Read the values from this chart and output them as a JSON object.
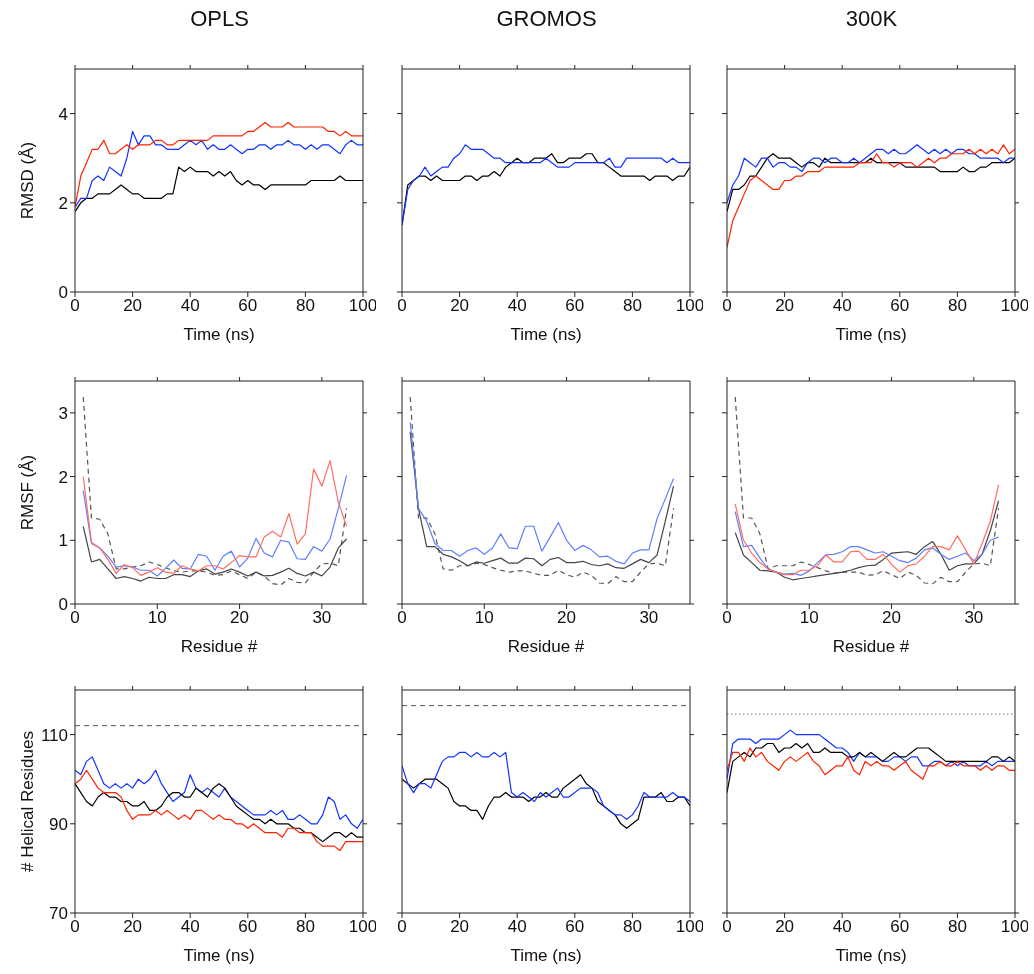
{
  "chart_data": [
    {
      "type": "line",
      "title": "OPLS",
      "xlabel": "Time (ns)",
      "ylabel": "RMSD (Å)",
      "xlim": [
        0,
        100
      ],
      "xticks": [
        0,
        20,
        40,
        60,
        80,
        100
      ],
      "ylim": [
        0,
        5
      ],
      "yticks": [
        0,
        2,
        4
      ],
      "x": [
        0,
        2,
        4,
        6,
        8,
        10,
        12,
        14,
        16,
        18,
        20,
        22,
        24,
        26,
        28,
        30,
        32,
        34,
        36,
        38,
        40,
        42,
        44,
        46,
        48,
        50,
        52,
        54,
        56,
        58,
        60,
        62,
        64,
        66,
        68,
        70,
        72,
        74,
        76,
        78,
        80,
        82,
        84,
        86,
        88,
        90,
        92,
        94,
        96,
        98,
        100
      ],
      "series": [
        {
          "color": "#000000",
          "values": [
            1.8,
            2.0,
            2.1,
            2.1,
            2.2,
            2.2,
            2.2,
            2.3,
            2.4,
            2.3,
            2.2,
            2.2,
            2.1,
            2.1,
            2.1,
            2.1,
            2.2,
            2.2,
            2.8,
            2.7,
            2.8,
            2.7,
            2.7,
            2.7,
            2.6,
            2.7,
            2.6,
            2.7,
            2.5,
            2.4,
            2.5,
            2.4,
            2.4,
            2.3,
            2.4,
            2.4,
            2.4,
            2.4,
            2.4,
            2.4,
            2.4,
            2.5,
            2.5,
            2.5,
            2.5,
            2.5,
            2.6,
            2.5,
            2.5,
            2.5,
            2.5
          ]
        },
        {
          "color": "#1133ff",
          "values": [
            1.9,
            2.1,
            2.1,
            2.5,
            2.6,
            2.5,
            2.8,
            2.7,
            2.6,
            3.0,
            3.6,
            3.3,
            3.5,
            3.5,
            3.3,
            3.3,
            3.2,
            3.2,
            3.2,
            3.3,
            3.4,
            3.3,
            3.4,
            3.2,
            3.3,
            3.2,
            3.2,
            3.3,
            3.2,
            3.1,
            3.2,
            3.2,
            3.3,
            3.3,
            3.2,
            3.3,
            3.3,
            3.4,
            3.3,
            3.3,
            3.2,
            3.3,
            3.2,
            3.3,
            3.3,
            3.2,
            3.1,
            3.3,
            3.4,
            3.3,
            3.3
          ]
        },
        {
          "color": "#ff2200",
          "values": [
            1.9,
            2.6,
            2.9,
            3.2,
            3.2,
            3.4,
            3.1,
            3.1,
            3.2,
            3.3,
            3.2,
            3.3,
            3.3,
            3.3,
            3.4,
            3.4,
            3.3,
            3.3,
            3.4,
            3.4,
            3.4,
            3.4,
            3.4,
            3.4,
            3.5,
            3.5,
            3.5,
            3.5,
            3.5,
            3.5,
            3.6,
            3.6,
            3.7,
            3.8,
            3.7,
            3.7,
            3.7,
            3.8,
            3.7,
            3.7,
            3.7,
            3.7,
            3.7,
            3.7,
            3.6,
            3.6,
            3.5,
            3.6,
            3.5,
            3.5,
            3.5
          ]
        }
      ]
    },
    {
      "type": "line",
      "title": "GROMOS",
      "xlabel": "Time (ns)",
      "xlim": [
        0,
        100
      ],
      "xticks": [
        0,
        20,
        40,
        60,
        80,
        100
      ],
      "ylim": [
        0,
        5
      ],
      "yticks": [
        0,
        2,
        4
      ],
      "tick_labels": "x",
      "x": [
        0,
        2,
        4,
        6,
        8,
        10,
        12,
        14,
        16,
        18,
        20,
        22,
        24,
        26,
        28,
        30,
        32,
        34,
        36,
        38,
        40,
        42,
        44,
        46,
        48,
        50,
        52,
        54,
        56,
        58,
        60,
        62,
        64,
        66,
        68,
        70,
        72,
        74,
        76,
        78,
        80,
        82,
        84,
        86,
        88,
        90,
        92,
        94,
        96,
        98,
        100
      ],
      "series": [
        {
          "color": "#000000",
          "values": [
            1.5,
            2.4,
            2.5,
            2.6,
            2.6,
            2.5,
            2.6,
            2.5,
            2.5,
            2.5,
            2.5,
            2.6,
            2.6,
            2.5,
            2.6,
            2.6,
            2.7,
            2.6,
            2.8,
            2.9,
            3.0,
            2.9,
            2.9,
            3.0,
            3.0,
            3.0,
            3.1,
            2.9,
            2.9,
            3.0,
            3.0,
            3.0,
            3.1,
            3.1,
            2.9,
            2.9,
            2.8,
            2.7,
            2.6,
            2.6,
            2.6,
            2.6,
            2.6,
            2.5,
            2.6,
            2.6,
            2.6,
            2.5,
            2.6,
            2.6,
            2.8
          ]
        },
        {
          "color": "#1133ff",
          "values": [
            1.5,
            2.3,
            2.5,
            2.6,
            2.8,
            2.6,
            2.7,
            2.8,
            2.8,
            3.0,
            3.1,
            3.3,
            3.2,
            3.2,
            3.2,
            3.1,
            3.0,
            3.0,
            2.9,
            2.9,
            2.9,
            2.9,
            2.9,
            2.9,
            2.9,
            3.0,
            2.9,
            2.8,
            2.8,
            2.8,
            2.9,
            2.9,
            2.9,
            2.9,
            2.9,
            2.9,
            3.0,
            2.8,
            2.8,
            3.0,
            3.0,
            3.0,
            3.0,
            3.0,
            3.0,
            3.0,
            2.9,
            3.0,
            2.9,
            2.9,
            2.9
          ]
        }
      ]
    },
    {
      "type": "line",
      "title": "300K",
      "xlabel": "Time (ns)",
      "xlim": [
        0,
        100
      ],
      "xticks": [
        0,
        20,
        40,
        60,
        80,
        100
      ],
      "ylim": [
        0,
        5
      ],
      "yticks": [
        0,
        2,
        4
      ],
      "tick_labels": "x",
      "x": [
        0,
        2,
        4,
        6,
        8,
        10,
        12,
        14,
        16,
        18,
        20,
        22,
        24,
        26,
        28,
        30,
        32,
        34,
        36,
        38,
        40,
        42,
        44,
        46,
        48,
        50,
        52,
        54,
        56,
        58,
        60,
        62,
        64,
        66,
        68,
        70,
        72,
        74,
        76,
        78,
        80,
        82,
        84,
        86,
        88,
        90,
        92,
        94,
        96,
        98,
        100
      ],
      "series": [
        {
          "color": "#000000",
          "values": [
            1.8,
            2.3,
            2.3,
            2.4,
            2.6,
            2.6,
            2.8,
            3.0,
            3.1,
            3.0,
            3.0,
            3.0,
            2.9,
            2.8,
            2.9,
            2.9,
            2.8,
            3.0,
            2.9,
            2.9,
            2.9,
            2.9,
            2.9,
            2.9,
            2.9,
            3.0,
            2.9,
            2.9,
            2.9,
            2.9,
            2.9,
            2.8,
            2.8,
            2.8,
            2.8,
            2.8,
            2.8,
            2.7,
            2.7,
            2.7,
            2.7,
            2.8,
            2.7,
            2.7,
            2.8,
            2.8,
            2.9,
            2.9,
            2.9,
            2.9,
            3.0
          ]
        },
        {
          "color": "#1133ff",
          "values": [
            2.0,
            2.4,
            2.6,
            3.0,
            2.9,
            2.8,
            3.0,
            3.0,
            2.8,
            2.9,
            2.9,
            2.8,
            2.8,
            2.7,
            2.9,
            3.0,
            3.0,
            2.9,
            3.0,
            3.0,
            2.9,
            2.9,
            3.0,
            2.9,
            3.0,
            3.1,
            3.2,
            3.2,
            3.1,
            3.2,
            3.1,
            3.1,
            3.2,
            3.3,
            3.2,
            3.1,
            3.2,
            3.1,
            3.2,
            3.1,
            3.2,
            3.2,
            3.1,
            3.1,
            3.0,
            3.0,
            3.0,
            3.0,
            2.9,
            3.0,
            3.0
          ]
        },
        {
          "color": "#ff2200",
          "values": [
            1.0,
            1.6,
            1.9,
            2.2,
            2.5,
            2.6,
            2.5,
            2.4,
            2.3,
            2.3,
            2.5,
            2.5,
            2.6,
            2.6,
            2.7,
            2.7,
            2.7,
            2.8,
            2.8,
            2.8,
            2.8,
            2.8,
            2.8,
            2.9,
            2.9,
            2.9,
            3.1,
            2.9,
            2.9,
            2.8,
            2.9,
            2.9,
            2.9,
            2.8,
            2.9,
            3.0,
            2.9,
            3.0,
            3.0,
            3.1,
            3.1,
            3.1,
            3.2,
            3.1,
            3.2,
            3.1,
            3.2,
            3.1,
            3.3,
            3.1,
            3.2
          ]
        }
      ]
    },
    {
      "type": "line",
      "xlabel": "Residue #",
      "ylabel": "RMSF (Å)",
      "xlim": [
        0,
        35
      ],
      "xticks": [
        0,
        10,
        20,
        30
      ],
      "ylim": [
        0,
        3.5
      ],
      "yticks": [
        0,
        1,
        2,
        3
      ],
      "x": [
        1,
        2,
        3,
        4,
        5,
        6,
        7,
        8,
        9,
        10,
        11,
        12,
        13,
        14,
        15,
        16,
        17,
        18,
        19,
        20,
        21,
        22,
        23,
        24,
        25,
        26,
        27,
        28,
        29,
        30,
        31,
        32,
        33
      ],
      "series": [
        {
          "color": "#555555",
          "line_style": "dashed",
          "values": [
            3.25,
            1.35,
            1.33,
            1.1,
            0.55,
            0.55,
            0.58,
            0.6,
            0.66,
            0.62,
            0.57,
            0.52,
            0.5,
            0.52,
            0.52,
            0.5,
            0.45,
            0.46,
            0.52,
            0.46,
            0.4,
            0.5,
            0.44,
            0.32,
            0.3,
            0.4,
            0.34,
            0.33,
            0.5,
            0.63,
            0.64,
            0.6,
            1.5
          ]
        },
        {
          "color": "#444444",
          "values": [
            1.22,
            0.66,
            0.7,
            0.55,
            0.4,
            0.43,
            0.4,
            0.36,
            0.42,
            0.4,
            0.4,
            0.46,
            0.46,
            0.43,
            0.52,
            0.55,
            0.47,
            0.5,
            0.55,
            0.5,
            0.44,
            0.5,
            0.44,
            0.45,
            0.5,
            0.56,
            0.48,
            0.44,
            0.5,
            0.44,
            0.58,
            0.88,
            1.02
          ]
        },
        {
          "color": "#5f7fff",
          "values": [
            1.78,
            0.95,
            0.88,
            0.75,
            0.58,
            0.6,
            0.58,
            0.53,
            0.53,
            0.44,
            0.56,
            0.69,
            0.56,
            0.55,
            0.78,
            0.75,
            0.53,
            0.75,
            0.83,
            0.58,
            0.72,
            1.03,
            0.8,
            0.74,
            1.0,
            0.97,
            0.71,
            0.7,
            0.9,
            0.83,
            1.02,
            1.5,
            2.02
          ]
        },
        {
          "color": "#ff6f61",
          "values": [
            2.0,
            0.97,
            0.88,
            0.7,
            0.48,
            0.62,
            0.57,
            0.45,
            0.5,
            0.57,
            0.5,
            0.48,
            0.6,
            0.55,
            0.52,
            0.6,
            0.6,
            0.55,
            0.65,
            0.76,
            0.74,
            0.74,
            1.05,
            1.14,
            1.05,
            1.42,
            0.94,
            1.1,
            2.12,
            1.85,
            2.25,
            1.6,
            1.22
          ]
        }
      ]
    },
    {
      "type": "line",
      "xlabel": "Residue #",
      "xlim": [
        0,
        35
      ],
      "xticks": [
        0,
        10,
        20,
        30
      ],
      "ylim": [
        0,
        3.5
      ],
      "yticks": [
        0,
        1,
        2,
        3
      ],
      "tick_labels": "x",
      "x": [
        1,
        2,
        3,
        4,
        5,
        6,
        7,
        8,
        9,
        10,
        11,
        12,
        13,
        14,
        15,
        16,
        17,
        18,
        19,
        20,
        21,
        22,
        23,
        24,
        25,
        26,
        27,
        28,
        29,
        30,
        31,
        32,
        33
      ],
      "series": [
        {
          "color": "#555555",
          "line_style": "dashed",
          "values": [
            3.25,
            1.35,
            1.35,
            1.1,
            0.55,
            0.53,
            0.6,
            0.6,
            0.64,
            0.62,
            0.57,
            0.53,
            0.5,
            0.52,
            0.52,
            0.48,
            0.45,
            0.45,
            0.53,
            0.46,
            0.42,
            0.5,
            0.45,
            0.33,
            0.32,
            0.43,
            0.35,
            0.35,
            0.5,
            0.63,
            0.64,
            0.6,
            1.5
          ]
        },
        {
          "color": "#444444",
          "values": [
            2.7,
            1.5,
            0.9,
            0.9,
            0.78,
            0.74,
            0.68,
            0.6,
            0.66,
            0.64,
            0.68,
            0.72,
            0.64,
            0.64,
            0.72,
            0.71,
            0.6,
            0.7,
            0.73,
            0.65,
            0.65,
            0.67,
            0.62,
            0.6,
            0.63,
            0.57,
            0.56,
            0.63,
            0.7,
            0.65,
            0.77,
            1.3,
            1.85
          ]
        },
        {
          "color": "#5f7fff",
          "values": [
            2.85,
            1.5,
            1.3,
            0.95,
            0.84,
            0.84,
            0.75,
            0.84,
            0.88,
            0.78,
            0.88,
            1.1,
            0.88,
            0.87,
            1.22,
            1.22,
            0.83,
            1.05,
            1.28,
            1.0,
            0.84,
            0.92,
            0.85,
            0.74,
            0.75,
            0.67,
            0.63,
            0.8,
            0.85,
            0.85,
            1.34,
            1.65,
            1.97
          ]
        }
      ]
    },
    {
      "type": "line",
      "xlabel": "Residue #",
      "xlim": [
        0,
        35
      ],
      "xticks": [
        0,
        10,
        20,
        30
      ],
      "ylim": [
        0,
        3.5
      ],
      "yticks": [
        0,
        1,
        2,
        3
      ],
      "tick_labels": "x",
      "x": [
        1,
        2,
        3,
        4,
        5,
        6,
        7,
        8,
        9,
        10,
        11,
        12,
        13,
        14,
        15,
        16,
        17,
        18,
        19,
        20,
        21,
        22,
        23,
        24,
        25,
        26,
        27,
        28,
        29,
        30,
        31,
        32,
        33
      ],
      "series": [
        {
          "color": "#555555",
          "line_style": "dashed",
          "values": [
            3.25,
            1.35,
            1.35,
            1.1,
            0.55,
            0.6,
            0.6,
            0.6,
            0.66,
            0.62,
            0.57,
            0.52,
            0.48,
            0.5,
            0.5,
            0.5,
            0.45,
            0.46,
            0.52,
            0.46,
            0.4,
            0.5,
            0.45,
            0.33,
            0.32,
            0.42,
            0.35,
            0.35,
            0.5,
            0.63,
            0.64,
            0.6,
            1.5
          ]
        },
        {
          "color": "#444444",
          "values": [
            1.12,
            0.77,
            0.65,
            0.53,
            0.52,
            0.5,
            0.42,
            0.38,
            0.4,
            0.42,
            0.44,
            0.46,
            0.48,
            0.5,
            0.53,
            0.57,
            0.6,
            0.61,
            0.7,
            0.8,
            0.81,
            0.82,
            0.78,
            0.9,
            0.98,
            0.78,
            0.53,
            0.6,
            0.63,
            0.63,
            0.78,
            1.15,
            1.62
          ]
        },
        {
          "color": "#5f7fff",
          "values": [
            1.45,
            0.9,
            0.92,
            0.72,
            0.55,
            0.5,
            0.47,
            0.48,
            0.45,
            0.52,
            0.65,
            0.77,
            0.78,
            0.82,
            0.9,
            0.9,
            0.85,
            0.8,
            0.82,
            0.75,
            0.68,
            0.65,
            0.72,
            0.85,
            0.88,
            0.78,
            0.7,
            0.75,
            0.8,
            0.68,
            0.78,
            1.0,
            1.05
          ]
        },
        {
          "color": "#ff6f61",
          "values": [
            1.57,
            1.0,
            0.8,
            0.65,
            0.55,
            0.5,
            0.46,
            0.46,
            0.53,
            0.53,
            0.6,
            0.77,
            0.66,
            0.66,
            0.82,
            0.83,
            0.7,
            0.7,
            0.78,
            0.62,
            0.5,
            0.6,
            0.63,
            0.75,
            0.9,
            0.9,
            0.85,
            1.07,
            0.85,
            0.63,
            0.95,
            1.3,
            1.87
          ]
        }
      ]
    },
    {
      "type": "line",
      "xlabel": "Time (ns)",
      "ylabel": "# Helical Residues",
      "xlim": [
        0,
        100
      ],
      "xticks": [
        0,
        20,
        40,
        60,
        80,
        100
      ],
      "ylim": [
        70,
        120
      ],
      "yticks": [
        70,
        90,
        110
      ],
      "ref_lines": [
        {
          "axis": "y",
          "value": 112,
          "color": "#555555",
          "line_style": "dashed"
        }
      ],
      "x": [
        0,
        2,
        4,
        6,
        8,
        10,
        12,
        14,
        16,
        18,
        20,
        22,
        24,
        26,
        28,
        30,
        32,
        34,
        36,
        38,
        40,
        42,
        44,
        46,
        48,
        50,
        52,
        54,
        56,
        58,
        60,
        62,
        64,
        66,
        68,
        70,
        72,
        74,
        76,
        78,
        80,
        82,
        84,
        86,
        88,
        90,
        92,
        94,
        96,
        98,
        100
      ],
      "series": [
        {
          "color": "#1133ff",
          "values": [
            102,
            101,
            104,
            105,
            102,
            99,
            98,
            99,
            98,
            99,
            98,
            100,
            99,
            100,
            102,
            99,
            97,
            95,
            96,
            97,
            101,
            98,
            97,
            98,
            97,
            96,
            98,
            96,
            95,
            94,
            93,
            92,
            92,
            92,
            93,
            92,
            93,
            91,
            91,
            92,
            91,
            90,
            90,
            92,
            96,
            95,
            91,
            92,
            90,
            89,
            91
          ]
        },
        {
          "color": "#000000",
          "values": [
            99,
            97,
            95,
            94,
            96,
            97,
            96,
            96,
            95,
            95,
            94,
            94,
            95,
            93,
            93,
            94,
            96,
            97,
            97,
            96,
            96,
            98,
            97,
            96,
            98,
            99,
            98,
            96,
            94,
            93,
            92,
            91,
            91,
            90,
            91,
            90,
            90,
            90,
            89,
            89,
            88,
            88,
            87,
            86,
            87,
            88,
            88,
            87,
            88,
            87,
            87
          ]
        },
        {
          "color": "#ff2200",
          "values": [
            99,
            100,
            102,
            100,
            98,
            97,
            97,
            97,
            96,
            93,
            91,
            92,
            92,
            92,
            93,
            92,
            93,
            92,
            91,
            92,
            91,
            93,
            93,
            92,
            91,
            92,
            91,
            91,
            90,
            90,
            89,
            90,
            89,
            88,
            88,
            88,
            87,
            89,
            89,
            88,
            88,
            88,
            86,
            85,
            85,
            85,
            84,
            86,
            86,
            86,
            86
          ]
        }
      ]
    },
    {
      "type": "line",
      "xlabel": "Time (ns)",
      "xlim": [
        0,
        100
      ],
      "xticks": [
        0,
        20,
        40,
        60,
        80,
        100
      ],
      "ylim": [
        70,
        120
      ],
      "yticks": [
        70,
        90,
        110
      ],
      "tick_labels": "x",
      "ref_lines": [
        {
          "axis": "y",
          "value": 116.5,
          "color": "#555555",
          "line_style": "dashed"
        }
      ],
      "x": [
        0,
        2,
        4,
        6,
        8,
        10,
        12,
        14,
        16,
        18,
        20,
        22,
        24,
        26,
        28,
        30,
        32,
        34,
        36,
        38,
        40,
        42,
        44,
        46,
        48,
        50,
        52,
        54,
        56,
        58,
        60,
        62,
        64,
        66,
        68,
        70,
        72,
        74,
        76,
        78,
        80,
        82,
        84,
        86,
        88,
        90,
        92,
        94,
        96,
        98,
        100
      ],
      "series": [
        {
          "color": "#000000",
          "values": [
            100,
            99,
            98,
            99,
            100,
            100,
            100,
            99,
            98,
            95,
            94,
            94,
            93,
            93,
            91,
            94,
            96,
            96,
            97,
            96,
            96,
            96,
            95,
            96,
            96,
            97,
            96,
            96,
            98,
            99,
            100,
            101,
            99,
            98,
            95,
            94,
            93,
            92,
            90,
            89,
            90,
            91,
            96,
            96,
            96,
            97,
            95,
            95,
            96,
            96,
            94
          ]
        },
        {
          "color": "#1133ff",
          "values": [
            103,
            99,
            97,
            99,
            99,
            98,
            101,
            104,
            105,
            105,
            106,
            106,
            105,
            106,
            105,
            105,
            106,
            105,
            106,
            97,
            96,
            97,
            96,
            95,
            97,
            96,
            97,
            98,
            96,
            96,
            97,
            98,
            98,
            98,
            97,
            94,
            93,
            92,
            92,
            91,
            92,
            94,
            97,
            96,
            96,
            96,
            96,
            97,
            96,
            96,
            95
          ]
        }
      ]
    },
    {
      "type": "line",
      "xlabel": "Time (ns)",
      "xlim": [
        0,
        100
      ],
      "xticks": [
        0,
        20,
        40,
        60,
        80,
        100
      ],
      "ylim": [
        70,
        120
      ],
      "yticks": [
        70,
        90,
        110
      ],
      "tick_labels": "x",
      "ref_lines": [
        {
          "axis": "y",
          "value": 114.6,
          "color": "#777777",
          "line_style": "dotted"
        }
      ],
      "x": [
        0,
        2,
        4,
        6,
        8,
        10,
        12,
        14,
        16,
        18,
        20,
        22,
        24,
        26,
        28,
        30,
        32,
        34,
        36,
        38,
        40,
        42,
        44,
        46,
        48,
        50,
        52,
        54,
        56,
        58,
        60,
        62,
        64,
        66,
        68,
        70,
        72,
        74,
        76,
        78,
        80,
        82,
        84,
        86,
        88,
        90,
        92,
        94,
        96,
        98,
        100
      ],
      "series": [
        {
          "color": "#1133ff",
          "values": [
            100,
            108,
            109,
            109,
            109,
            108,
            109,
            109,
            109,
            109,
            110,
            111,
            110,
            110,
            110,
            110,
            110,
            109,
            108,
            107,
            107,
            106,
            104,
            106,
            105,
            105,
            105,
            104,
            104,
            105,
            105,
            104,
            105,
            105,
            103,
            103,
            104,
            104,
            103,
            104,
            103,
            104,
            103,
            103,
            103,
            104,
            103,
            104,
            104,
            104,
            104
          ]
        },
        {
          "color": "#000000",
          "values": [
            97,
            104,
            105,
            106,
            105,
            107,
            107,
            108,
            108,
            106,
            107,
            107,
            108,
            107,
            108,
            106,
            106,
            107,
            106,
            106,
            106,
            105,
            105,
            106,
            105,
            106,
            105,
            104,
            105,
            106,
            105,
            105,
            106,
            107,
            107,
            107,
            106,
            105,
            104,
            104,
            104,
            104,
            104,
            104,
            104,
            104,
            105,
            105,
            104,
            105,
            104
          ]
        },
        {
          "color": "#ff2200",
          "values": [
            102,
            106,
            106,
            104,
            107,
            105,
            106,
            104,
            103,
            102,
            104,
            105,
            104,
            105,
            106,
            104,
            103,
            101,
            102,
            103,
            103,
            105,
            102,
            101,
            104,
            103,
            104,
            103,
            103,
            102,
            103,
            104,
            102,
            101,
            100,
            103,
            103,
            104,
            103,
            103,
            104,
            103,
            103,
            103,
            102,
            103,
            102,
            103,
            103,
            102,
            102
          ]
        }
      ]
    }
  ]
}
